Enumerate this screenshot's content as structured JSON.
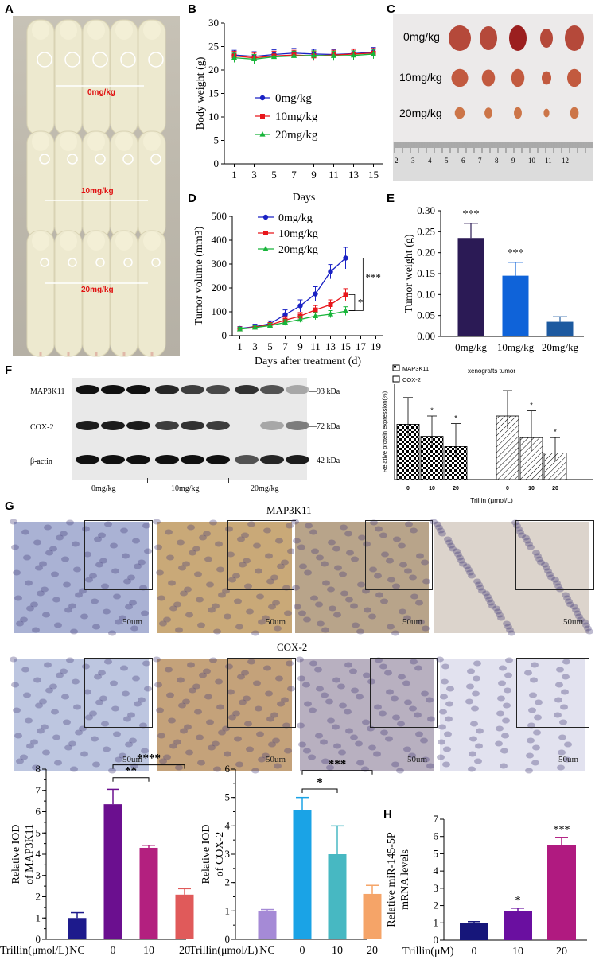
{
  "panels": {
    "A": "A",
    "B": "B",
    "C": "C",
    "D": "D",
    "E": "E",
    "F": "F",
    "G": "G",
    "H": "H"
  },
  "photoA": {
    "dose_labels": [
      "0mg/kg",
      "10mg/kg",
      "20mg/kg"
    ],
    "label_color": "#e01010"
  },
  "photoC": {
    "dose_labels": [
      "0mg/kg",
      "10mg/kg",
      "20mg/kg"
    ],
    "ruler_ticks": [
      "2",
      "3",
      "4",
      "5",
      "6",
      "7",
      "8",
      "9",
      "10",
      "11",
      "12"
    ]
  },
  "western": {
    "rows": [
      "MAP3K11",
      "COX-2",
      "β-actin"
    ],
    "kda": [
      "93 kDa",
      "72 kDa",
      "42 kDa"
    ],
    "groups": [
      "0mg/kg",
      "10mg/kg",
      "20mg/kg"
    ]
  },
  "ihc": {
    "titles": [
      "MAP3K11",
      "COX-2"
    ],
    "scale": "50um"
  },
  "colors": {
    "blue": "#1a22c4",
    "red": "#e8161b",
    "green": "#18b53a",
    "E_bars": [
      "#2b1a55",
      "#0f63d9",
      "#1d5aa0"
    ]
  },
  "chart_data": [
    {
      "id": "B",
      "type": "line",
      "xlabel": "Days",
      "ylabel": "Body weight (g)",
      "xticks": [
        1,
        3,
        5,
        7,
        9,
        11,
        13,
        15
      ],
      "ylim": [
        0,
        30
      ],
      "yticks": [
        0,
        5,
        10,
        15,
        20,
        25,
        30
      ],
      "x": [
        1,
        3,
        5,
        7,
        9,
        11,
        13,
        15
      ],
      "series": [
        {
          "name": "0mg/kg",
          "values": [
            23.2,
            22.9,
            23.3,
            23.6,
            23.4,
            23.3,
            23.5,
            23.8
          ]
        },
        {
          "name": "10mg/kg",
          "values": [
            23.0,
            22.6,
            23.0,
            23.2,
            23.0,
            23.2,
            23.4,
            23.6
          ]
        },
        {
          "name": "20mg/kg",
          "values": [
            22.6,
            22.3,
            22.8,
            23.0,
            23.1,
            23.0,
            23.1,
            23.4
          ]
        }
      ],
      "legend": "center-right"
    },
    {
      "id": "D",
      "type": "line",
      "xlabel": "Days after treatment (d)",
      "ylabel": "Tumor volume (mm3)",
      "xticks": [
        1,
        3,
        5,
        7,
        9,
        11,
        13,
        15,
        17,
        19
      ],
      "ylim": [
        0,
        500
      ],
      "yticks": [
        0,
        100,
        200,
        300,
        400,
        500
      ],
      "x": [
        1,
        3,
        5,
        7,
        9,
        11,
        13,
        15
      ],
      "series": [
        {
          "name": "0mg/kg",
          "values": [
            30,
            38,
            50,
            88,
            125,
            175,
            268,
            325
          ],
          "err": [
            8,
            10,
            12,
            20,
            25,
            30,
            30,
            45
          ]
        },
        {
          "name": "10mg/kg",
          "values": [
            28,
            36,
            45,
            65,
            82,
            108,
            130,
            172
          ],
          "err": [
            8,
            8,
            10,
            15,
            15,
            18,
            20,
            25
          ]
        },
        {
          "name": "20mg/kg",
          "values": [
            27,
            34,
            42,
            55,
            68,
            82,
            90,
            103
          ],
          "err": [
            8,
            8,
            10,
            12,
            12,
            15,
            15,
            18
          ]
        }
      ],
      "significance": [
        "***",
        "*"
      ],
      "legend": "top-left"
    },
    {
      "id": "E",
      "type": "bar",
      "categories": [
        "0mg/kg",
        "10mg/kg",
        "20mg/kg"
      ],
      "values": [
        0.235,
        0.145,
        0.035
      ],
      "err": [
        0.035,
        0.032,
        0.012
      ],
      "ylabel": "Tumor  weight (g)",
      "ylim": [
        0,
        0.3
      ],
      "yticks": [
        "0.00",
        "0.05",
        "0.10",
        "0.15",
        "0.20",
        "0.25",
        "0.30"
      ],
      "significance": [
        "***",
        "***",
        ""
      ]
    },
    {
      "id": "F",
      "type": "bar",
      "title": "xenografts tumor",
      "ylabel": "Relative protein expression(%)",
      "xlabel": "Trillin  (μmol/L)",
      "categories": [
        "0",
        "10",
        "20"
      ],
      "series": [
        {
          "name": "MAP3K11",
          "values": [
            0.87,
            0.68,
            0.52
          ],
          "err": [
            0.42,
            0.32,
            0.36
          ]
        },
        {
          "name": "COX-2",
          "values": [
            1.0,
            0.66,
            0.42
          ],
          "err": [
            0.4,
            0.42,
            0.24
          ]
        }
      ],
      "significance": [
        "",
        "*",
        "*"
      ]
    },
    {
      "id": "G1",
      "type": "bar",
      "ylabel": "Relative IOD of MAP3K11",
      "xlabel": "Trillin(μmol/L)",
      "categories": [
        "NC",
        "0",
        "10",
        "20"
      ],
      "values": [
        1.0,
        6.35,
        4.3,
        2.1
      ],
      "err": [
        0.25,
        0.7,
        0.12,
        0.28
      ],
      "ylim": [
        0,
        8
      ],
      "yticks": [
        0,
        0.5,
        1,
        1.5,
        2,
        2.5,
        3,
        3.5,
        4,
        4.5,
        5,
        5.5,
        6,
        6.5,
        7,
        7.5,
        8
      ],
      "ytick_labels": [
        "0",
        "1",
        "2",
        "3",
        "4",
        "5",
        "6",
        "7",
        "8"
      ],
      "colors": [
        "#1d1a8c",
        "#6b0f8f",
        "#b3207f",
        "#e05a5a"
      ],
      "significance": [
        "**",
        "****"
      ]
    },
    {
      "id": "G2",
      "type": "bar",
      "ylabel": "Relative IOD of COX-2",
      "xlabel": "Trillin(μmol/L)",
      "categories": [
        "NC",
        "0",
        "10",
        "20"
      ],
      "values": [
        1.0,
        4.55,
        3.0,
        1.6
      ],
      "err": [
        0.05,
        0.45,
        1.0,
        0.3
      ],
      "ylim": [
        0,
        6
      ],
      "ytick_labels": [
        "0",
        "1",
        "2",
        "3",
        "4",
        "5",
        "6"
      ],
      "colors": [
        "#a58ad6",
        "#1aa3e6",
        "#47b8c2",
        "#f5a468"
      ],
      "significance": [
        "*",
        "***"
      ]
    },
    {
      "id": "H",
      "type": "bar",
      "ylabel": "Relative miR-145-5P mRNA levels",
      "xlabel": "Trillin(μM)",
      "categories": [
        "0",
        "10",
        "20"
      ],
      "values": [
        1.0,
        1.7,
        5.5
      ],
      "err": [
        0.07,
        0.15,
        0.45
      ],
      "ylim": [
        0,
        7
      ],
      "ytick_labels": [
        "0",
        "1",
        "2",
        "3",
        "4",
        "5",
        "6",
        "7"
      ],
      "colors": [
        "#16167a",
        "#6a0fa0",
        "#b01a80"
      ],
      "significance": [
        "",
        "*",
        "***"
      ]
    }
  ]
}
